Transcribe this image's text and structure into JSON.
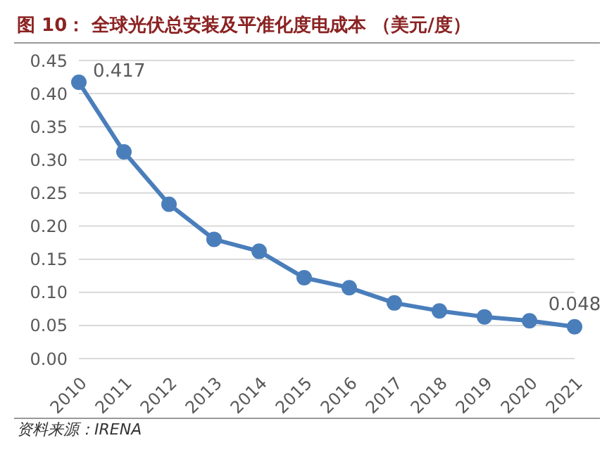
{
  "chart_data": {
    "type": "line",
    "title": "图 10：  全球光伏总安装及平准化度电成本 （美元/度）",
    "annotations": [
      "资料来源：IRENA"
    ],
    "categories": [
      "2010",
      "2011",
      "2012",
      "2013",
      "2014",
      "2015",
      "2016",
      "2017",
      "2018",
      "2019",
      "2020",
      "2021"
    ],
    "series": [
      {
        "color": "#4a7ebb",
        "values": [
          0.417,
          0.312,
          0.233,
          0.18,
          0.162,
          0.122,
          0.107,
          0.084,
          0.072,
          0.063,
          0.057,
          0.048
        ],
        "value_labels": [
          "0.417",
          null,
          null,
          null,
          null,
          null,
          null,
          null,
          null,
          null,
          null,
          "0.048"
        ]
      }
    ],
    "ylim": [
      0,
      0.45
    ],
    "yticks": [
      {
        "value": 0,
        "label": "0.00"
      },
      {
        "value": 0.05,
        "label": "0.05"
      },
      {
        "value": 0.1,
        "label": "0.10"
      },
      {
        "value": 0.15,
        "label": "0.15"
      },
      {
        "value": 0.2,
        "label": "0.20"
      },
      {
        "value": 0.25,
        "label": "0.25"
      },
      {
        "value": 0.3,
        "label": "0.30"
      },
      {
        "value": 0.35,
        "label": "0.35"
      },
      {
        "value": 0.4,
        "label": "0.40"
      },
      {
        "value": 0.45,
        "label": "0.45"
      }
    ],
    "grid": "y",
    "marker": "circle",
    "line_style": "solid"
  }
}
